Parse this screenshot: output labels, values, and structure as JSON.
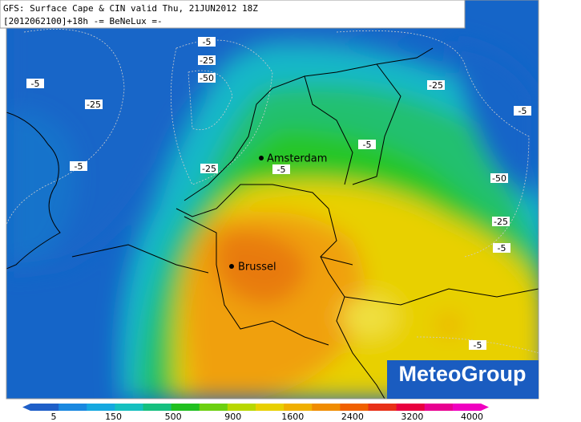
{
  "title": {
    "line1": "GFS: Surface Cape & CIN valid Thu, 21JUN2012 18Z",
    "line2": "[2012062100]+18h -= BeNeLux =-"
  },
  "cities": [
    {
      "label": "Amsterdam"
    },
    {
      "label": "Brussel"
    }
  ],
  "contour_labels": [
    -5,
    -25,
    -50,
    -5,
    -25,
    -5,
    -25,
    -5,
    -5,
    -25,
    -5,
    -50,
    -25,
    -5,
    -5
  ],
  "colorbar": {
    "labels": [
      5,
      150,
      500,
      900,
      1600,
      2400,
      3200,
      4000
    ]
  },
  "logo": "MeteoGroup"
}
